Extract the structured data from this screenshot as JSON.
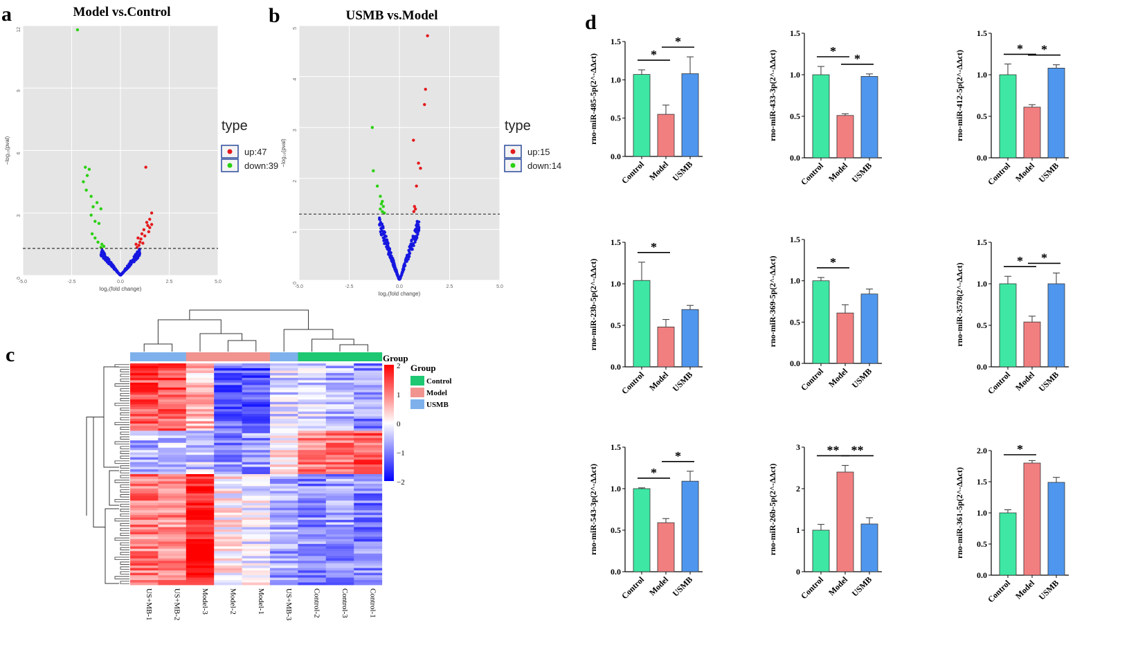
{
  "panels": {
    "a_label": "a",
    "b_label": "b",
    "c_label": "c",
    "d_label": "d"
  },
  "colors": {
    "control": "#3ee8a4",
    "model": "#f27f80",
    "usmb": "#4f97ee",
    "up": "#e41a1c",
    "down": "#2ad10f",
    "ns": "#1616e0",
    "heat_high": "#ff0000",
    "heat_low": "#0000ff",
    "heat_mid": "#ffffff",
    "grp_control": "#1ec772",
    "grp_model": "#f19490",
    "grp_usmb": "#7eb1ec"
  },
  "chart_data": [
    {
      "type": "scatter",
      "title": "Model vs.Control",
      "xlabel": "log₂(fold change)",
      "ylabel": "−log₁₀(pval)",
      "xlim": [
        -5.0,
        5.0
      ],
      "ylim": [
        0,
        12
      ],
      "xticks": [
        "-5.0",
        "-2.5",
        "0.0",
        "2.5",
        "5.0"
      ],
      "yticks": [
        "0",
        "3",
        "6",
        "9",
        "12"
      ],
      "threshold": 1.3,
      "legend_title": "type",
      "legend": [
        "up:47",
        "down:39"
      ],
      "up_points": [
        [
          1.3,
          5.2
        ],
        [
          1.6,
          3.0
        ],
        [
          1.5,
          2.7
        ],
        [
          1.4,
          2.4
        ],
        [
          1.2,
          2.2
        ],
        [
          1.35,
          2.55
        ],
        [
          1.1,
          2.0
        ],
        [
          0.9,
          1.8
        ],
        [
          1.0,
          1.6
        ],
        [
          0.8,
          1.5
        ],
        [
          1.5,
          2.3
        ],
        [
          1.25,
          1.9
        ],
        [
          1.05,
          1.75
        ],
        [
          0.95,
          1.45
        ],
        [
          1.6,
          2.45
        ],
        [
          1.45,
          2.1
        ],
        [
          0.85,
          1.35
        ],
        [
          1.15,
          1.55
        ]
      ],
      "down_points": [
        [
          -2.2,
          11.8
        ],
        [
          -1.8,
          5.2
        ],
        [
          -1.6,
          5.1
        ],
        [
          -1.7,
          4.8
        ],
        [
          -1.9,
          4.5
        ],
        [
          -1.75,
          4.1
        ],
        [
          -1.5,
          3.8
        ],
        [
          -1.2,
          3.5
        ],
        [
          -1.4,
          3.3
        ],
        [
          -1.0,
          3.2
        ],
        [
          -1.5,
          2.9
        ],
        [
          -1.3,
          2.6
        ],
        [
          -1.1,
          2.5
        ],
        [
          -1.45,
          2.0
        ],
        [
          -1.3,
          1.8
        ],
        [
          -1.15,
          1.6
        ],
        [
          -0.95,
          1.5
        ],
        [
          -0.85,
          1.4
        ],
        [
          -1.0,
          1.35
        ]
      ]
    },
    {
      "type": "scatter",
      "title": "USMB vs.Model",
      "xlabel": "log₂(fold change)",
      "ylabel": "−log₁₀(pval)",
      "xlim": [
        -5.0,
        5.0
      ],
      "ylim": [
        0,
        5
      ],
      "xticks": [
        "-5.0",
        "-2.5",
        "0.0",
        "2.5",
        "5.0"
      ],
      "yticks": [
        "0",
        "1",
        "2",
        "3",
        "4",
        "5"
      ],
      "threshold": 1.3,
      "legend_title": "type",
      "legend": [
        "up:15",
        "down:14"
      ],
      "up_points": [
        [
          1.4,
          4.8
        ],
        [
          1.3,
          3.75
        ],
        [
          1.25,
          3.45
        ],
        [
          0.7,
          2.75
        ],
        [
          0.95,
          2.3
        ],
        [
          1.05,
          2.2
        ],
        [
          0.85,
          1.85
        ],
        [
          0.75,
          1.45
        ],
        [
          0.8,
          1.4
        ],
        [
          0.72,
          1.35
        ]
      ],
      "down_points": [
        [
          -1.35,
          3.0
        ],
        [
          -1.3,
          2.15
        ],
        [
          -1.1,
          1.85
        ],
        [
          -0.95,
          1.65
        ],
        [
          -0.85,
          1.55
        ],
        [
          -0.9,
          1.5
        ],
        [
          -0.8,
          1.45
        ],
        [
          -0.95,
          1.4
        ],
        [
          -0.85,
          1.35
        ],
        [
          -0.75,
          1.32
        ]
      ]
    },
    {
      "type": "heatmap",
      "columns": [
        "US+MB-1",
        "US+MB-2",
        "Model-3",
        "Model-2",
        "Model-1",
        "US+MB-3",
        "Control-2",
        "Control-3",
        "Control-1"
      ],
      "column_groups": [
        "USMB",
        "USMB",
        "Model",
        "Model",
        "Model",
        "USMB",
        "Control",
        "Control",
        "Control"
      ],
      "legend_title_top": "Group",
      "legend_title": "Group",
      "groups": [
        "Control",
        "Model",
        "USMB"
      ],
      "scale_ticks": [
        "2",
        "1",
        "0",
        "−1",
        "−2"
      ],
      "scale_range": [
        -2,
        2
      ]
    },
    {
      "type": "bar",
      "ylabel": "rno-miR-485-5p(2^-ΔΔct)",
      "categories": [
        "Control",
        "Model",
        "USMB"
      ],
      "values": [
        1.07,
        0.55,
        1.08
      ],
      "errors": [
        0.06,
        0.12,
        0.22
      ],
      "ylim": [
        0,
        1.5
      ],
      "yticks": [
        "0.0",
        "0.5",
        "1.0",
        "1.5"
      ],
      "sig": [
        {
          "from": 0,
          "to": 1,
          "label": "*"
        },
        {
          "from": 1,
          "to": 2,
          "label": "*"
        }
      ]
    },
    {
      "type": "bar",
      "ylabel": "rno-miR-433-3p(2^-ΔΔct)",
      "categories": [
        "Control",
        "Model",
        "USMB"
      ],
      "values": [
        1.0,
        0.51,
        0.98
      ],
      "errors": [
        0.1,
        0.02,
        0.03
      ],
      "ylim": [
        0,
        1.5
      ],
      "yticks": [
        "0.0",
        "0.5",
        "1.0",
        "1.5"
      ],
      "sig": [
        {
          "from": 0,
          "to": 1,
          "label": "*"
        },
        {
          "from": 1,
          "to": 2,
          "label": "*"
        }
      ]
    },
    {
      "type": "bar",
      "ylabel": "rno-miR-412-5p(2^-ΔΔct)",
      "categories": [
        "Control",
        "Model",
        "USMB"
      ],
      "values": [
        1.0,
        0.61,
        1.08
      ],
      "errors": [
        0.13,
        0.03,
        0.04
      ],
      "ylim": [
        0,
        1.5
      ],
      "yticks": [
        "0.0",
        "0.5",
        "1.0",
        "1.5"
      ],
      "sig": [
        {
          "from": 0,
          "to": 1,
          "label": "*"
        },
        {
          "from": 1,
          "to": 2,
          "label": "*"
        }
      ]
    },
    {
      "type": "bar",
      "ylabel": "rno-miR-23b-5p(2^-ΔΔct)",
      "categories": [
        "Control",
        "Model",
        "USMB"
      ],
      "values": [
        1.04,
        0.48,
        0.69
      ],
      "errors": [
        0.22,
        0.09,
        0.05
      ],
      "ylim": [
        0,
        1.5
      ],
      "yticks": [
        "0.0",
        "0.5",
        "1.0",
        "1.5"
      ],
      "sig": [
        {
          "from": 0,
          "to": 1,
          "label": "*"
        }
      ]
    },
    {
      "type": "bar",
      "ylabel": "rno-miR-369-5p(2^-ΔΔct)",
      "categories": [
        "Control",
        "Model",
        "USMB"
      ],
      "values": [
        1.0,
        0.61,
        0.84
      ],
      "errors": [
        0.04,
        0.1,
        0.06
      ],
      "ylim": [
        0,
        1.5
      ],
      "yticks": [
        "0.0",
        "0.5",
        "1.0",
        "1.5"
      ],
      "sig": [
        {
          "from": 0,
          "to": 1,
          "label": "*"
        }
      ]
    },
    {
      "type": "bar",
      "ylabel": "rno-miR-3578(2^-ΔΔct)",
      "categories": [
        "Control",
        "Model",
        "USMB"
      ],
      "values": [
        1.0,
        0.54,
        1.0
      ],
      "errors": [
        0.09,
        0.07,
        0.13
      ],
      "ylim": [
        0,
        1.5
      ],
      "yticks": [
        "0.0",
        "0.5",
        "1.0",
        "1.5"
      ],
      "sig": [
        {
          "from": 0,
          "to": 1,
          "label": "*"
        },
        {
          "from": 1,
          "to": 2,
          "label": "*"
        }
      ]
    },
    {
      "type": "bar",
      "ylabel": "rno-miR-543-3p(2^-ΔΔct)",
      "categories": [
        "Control",
        "Model",
        "USMB"
      ],
      "values": [
        1.0,
        0.59,
        1.09
      ],
      "errors": [
        0.01,
        0.05,
        0.12
      ],
      "ylim": [
        0,
        1.5
      ],
      "yticks": [
        "0.0",
        "0.5",
        "1.0",
        "1.5"
      ],
      "sig": [
        {
          "from": 0,
          "to": 1,
          "label": "*"
        },
        {
          "from": 1,
          "to": 2,
          "label": "*"
        }
      ]
    },
    {
      "type": "bar",
      "ylabel": "rno-miR-26b-5p(2^-ΔΔct)",
      "categories": [
        "Control",
        "Model",
        "USMB"
      ],
      "values": [
        1.0,
        2.4,
        1.15
      ],
      "errors": [
        0.14,
        0.16,
        0.15
      ],
      "ylim": [
        0,
        3
      ],
      "yticks": [
        "0",
        "1",
        "2",
        "3"
      ],
      "sig": [
        {
          "from": 0,
          "to": 1,
          "label": "**"
        },
        {
          "from": 1,
          "to": 2,
          "label": "**"
        }
      ]
    },
    {
      "type": "bar",
      "ylabel": "rno-miR-361-5p(2^-ΔΔct)",
      "categories": [
        "Control",
        "Model",
        "USMB"
      ],
      "values": [
        1.0,
        1.8,
        1.49
      ],
      "errors": [
        0.05,
        0.04,
        0.08
      ],
      "ylim": [
        0,
        2
      ],
      "yticks": [
        "0.0",
        "0.5",
        "1.0",
        "1.5",
        "2.0"
      ],
      "sig": [
        {
          "from": 0,
          "to": 1,
          "label": "*"
        }
      ]
    }
  ]
}
